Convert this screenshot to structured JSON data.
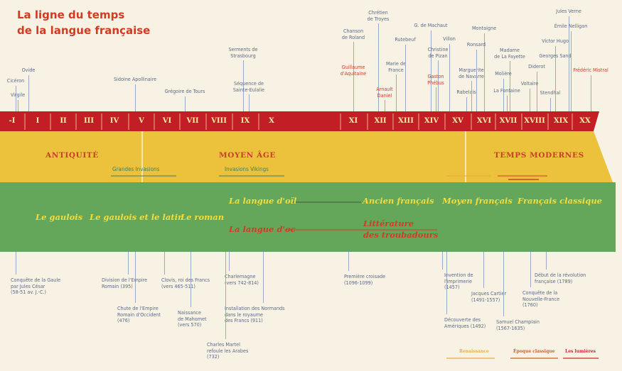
{
  "title": [
    "La ligne du temps",
    "de la langue française"
  ],
  "centuries": [
    "-I",
    "I",
    "II",
    "III",
    "IV",
    "V",
    "VI",
    "VII",
    "VIII",
    "IX",
    "X",
    "XI",
    "XII",
    "XIII",
    "XIV",
    "XV",
    "XVI",
    "XVII",
    "XVIII",
    "XIX",
    "XX"
  ],
  "eras": [
    "ANTIQUITÉ",
    "MOYEN ÂGE",
    "TEMPS MODERNES"
  ],
  "invasions": [
    "Grandes Invasions",
    "Invasions Vikings"
  ],
  "languages": {
    "gaulois": "Le gaulois",
    "gaulois_latin": "Le gaulois et le latin",
    "roman": "Le roman",
    "oil": "La langue d'oïl",
    "oc": "La langue d'oc",
    "ancien": "Ancien français",
    "moyen": "Moyen français",
    "classique": "Français classique",
    "troubadours": [
      "Littérature",
      "des troubadours"
    ]
  },
  "authors": [
    "Cicéron",
    "Ovide",
    "Virgile",
    "Sidoine Apollinaire",
    "Grégoire de Tours",
    "Serments de\nStrasbourg",
    "Séquence de\nSainte-Eulalie",
    "Chanson\nde Roland",
    "Chrétien\nde Troyes",
    "Guillaume\nd'Aquitaine",
    "Arnault\nDaniel",
    "Marie de\nFrance",
    "Rutebeuf",
    "G. de Machaut",
    "Christine\nde Pizan",
    "Gaston\nPhébus",
    "Villon",
    "Rabelais",
    "Marguerite\nde Navarre",
    "Montaigne",
    "Ronsard",
    "Madame\nde La Fayette",
    "Molière",
    "La Fontaine",
    "Diderot",
    "Voltaire",
    "Jules Verne",
    "Émile Nelligan",
    "Victor Hugo",
    "Georges Sand",
    "Stendhal",
    "Frédéric Mistral"
  ],
  "events": [
    "Conquête de la Gaule\npar Jules César\n(58-51 av. J.-C.)",
    "Division de l'Empire\nRomain (395)",
    "Clovis, roi des Francs\n(vers 465-511)",
    "Chute de l'Empire\nRomain d'Occident\n(476)",
    "Naissance\nde Mahomet\n(vers 570)",
    "Charlemagne\n(vers 742-814)",
    "Installation des Normands\ndans le royaume\ndes Francs (911)",
    "Charles Martel\nrefoule les Arabes\n(732)",
    "Première croisade\n(1096-1099)",
    "Invention de\nl'imprimerie\n(1457)",
    "Jacques Cartier\n(1491-1557)",
    "Découverte des\nAmériques (1492)",
    "Samuel Champlain\n(1567-1635)",
    "Début de la révolution\nfrançaise (1789)",
    "Conquête de la\nNouvelle-France\n(1760)"
  ],
  "legend": [
    "Renaissance",
    "Époque classique",
    "Les lumières"
  ],
  "colors": {
    "background": "#f8f2e4",
    "century_band": "#c21e26",
    "era_band": "#ecc23c",
    "language_band": "#64a75a",
    "title": "#d23a22",
    "label": "#5a6b86",
    "red_label": "#c9402a",
    "renaissance": "#e8b03a",
    "classique": "#d55a2a",
    "lumieres": "#c72a2a"
  }
}
